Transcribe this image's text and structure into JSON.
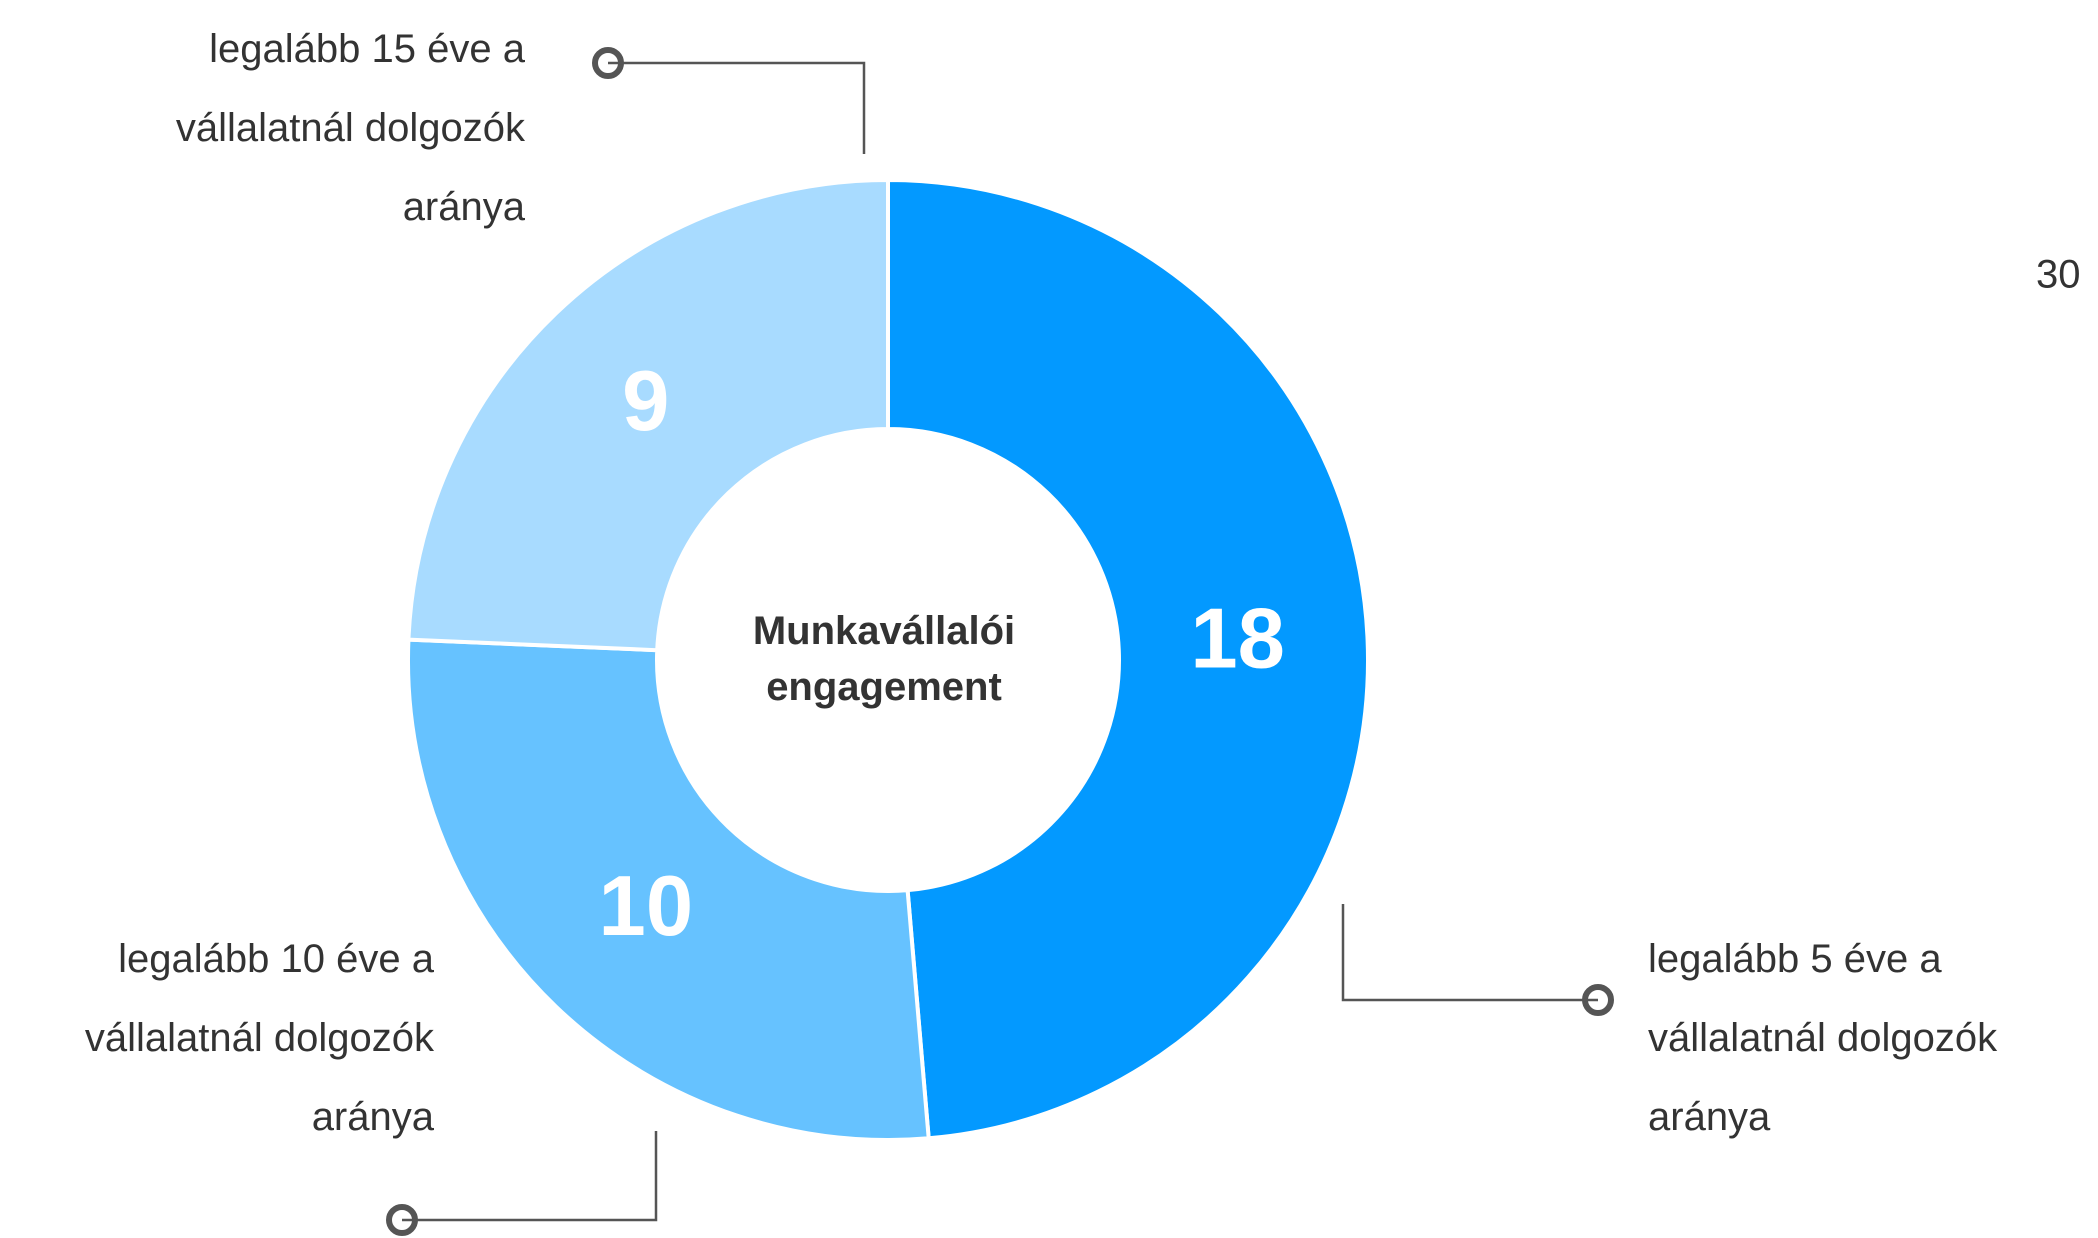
{
  "chart_data": {
    "type": "donut",
    "center_label": "Munkavállalói engagement",
    "categories": [
      "legalább 5 éve a vállalatnál dolgozók aránya",
      "legalább 10 éve a vállalatnál dolgozók aránya",
      "legalább 15 éve a vállalatnál dolgozók aránya"
    ],
    "values": [
      18,
      10,
      9
    ],
    "colors": [
      "#0399ff",
      "#66c2ff",
      "#a8dbff"
    ],
    "annotation": "30"
  }
}
